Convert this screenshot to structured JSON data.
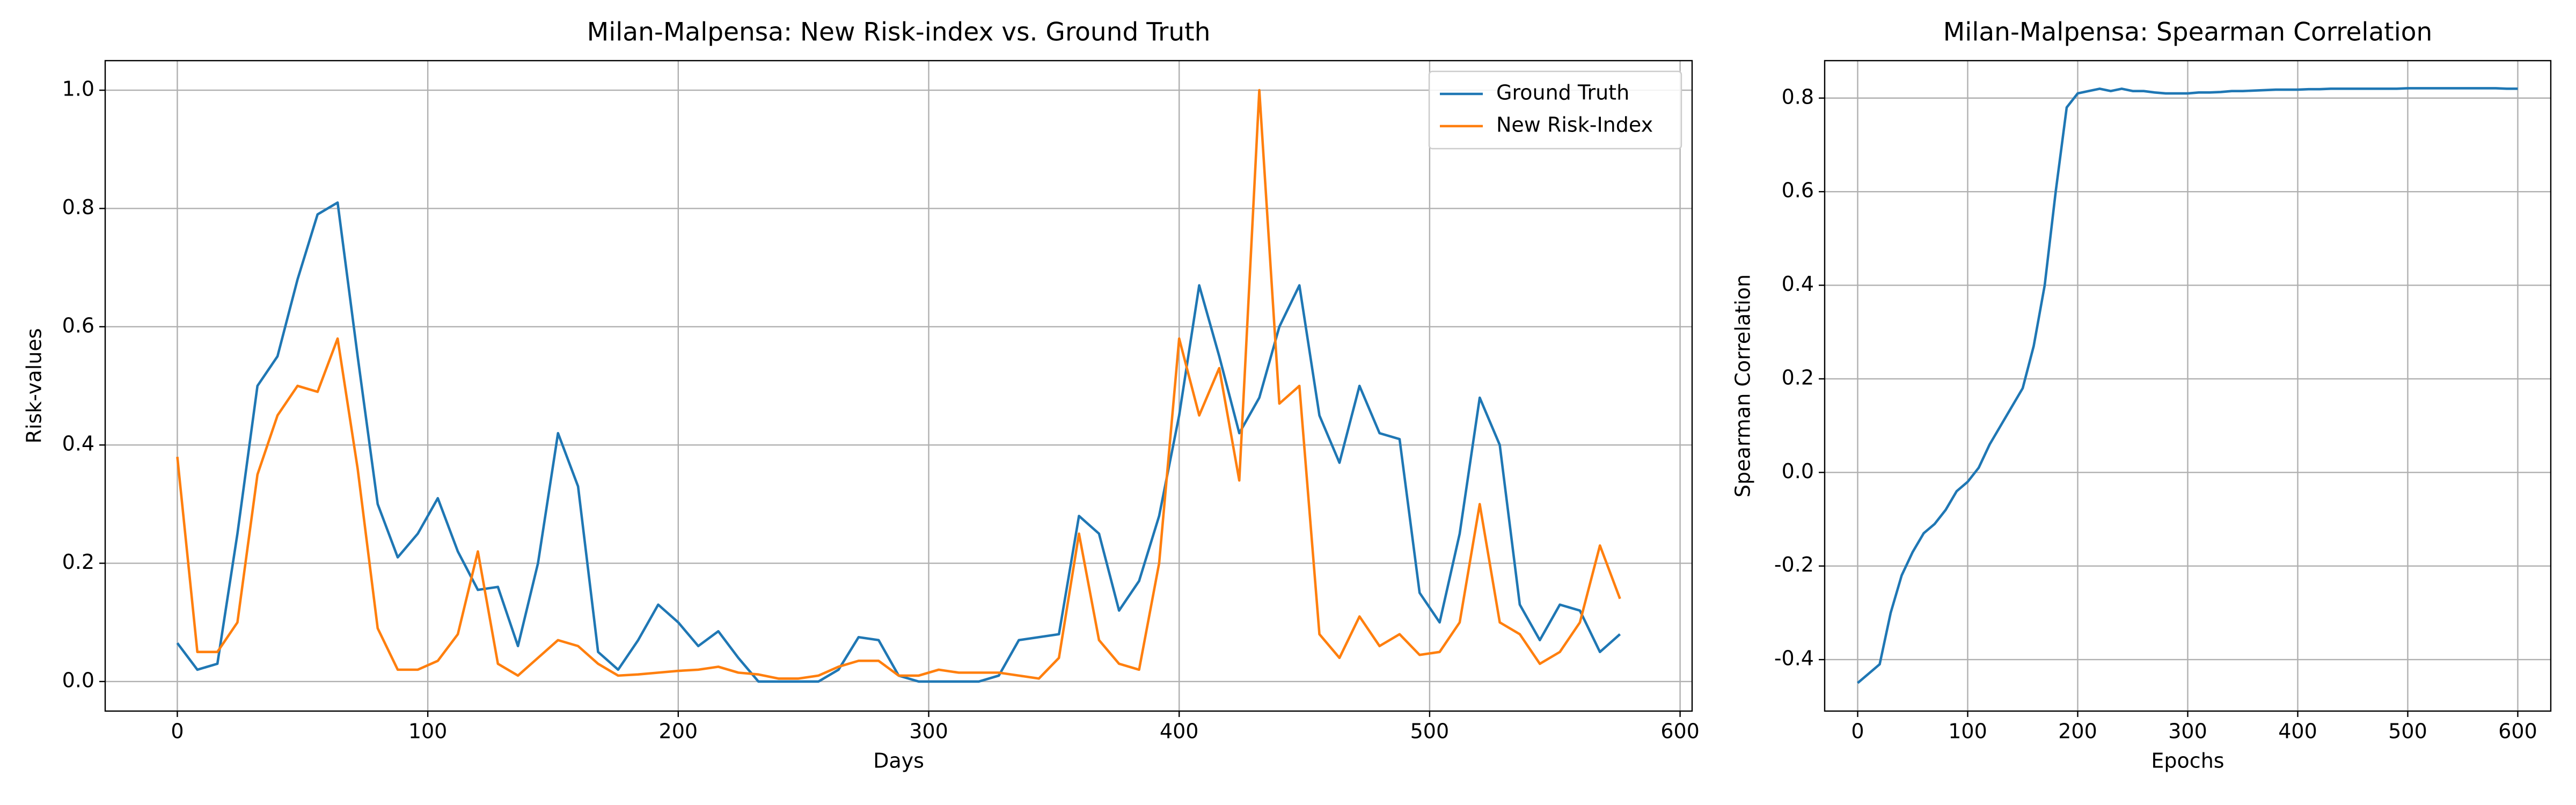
{
  "chart_data": [
    {
      "type": "line",
      "title": "Milan-Malpensa: New Risk-index vs. Ground Truth",
      "xlabel": "Days",
      "ylabel": "Risk-values",
      "x": [
        0,
        8,
        16,
        24,
        32,
        40,
        48,
        56,
        64,
        72,
        80,
        88,
        96,
        104,
        112,
        120,
        128,
        136,
        144,
        152,
        160,
        168,
        176,
        184,
        192,
        200,
        208,
        216,
        224,
        232,
        240,
        248,
        256,
        264,
        272,
        280,
        288,
        296,
        304,
        312,
        320,
        328,
        336,
        344,
        352,
        360,
        368,
        376,
        384,
        392,
        400,
        408,
        416,
        424,
        432,
        440,
        448,
        456,
        464,
        472,
        480,
        488,
        496,
        504,
        512,
        520,
        528,
        536,
        544,
        552,
        560,
        568,
        576
      ],
      "series": [
        {
          "name": "Ground Truth",
          "color": "#1f77b4",
          "values": [
            0.065,
            0.02,
            0.03,
            0.25,
            0.5,
            0.55,
            0.68,
            0.79,
            0.81,
            0.55,
            0.3,
            0.21,
            0.25,
            0.31,
            0.22,
            0.155,
            0.16,
            0.06,
            0.2,
            0.42,
            0.33,
            0.05,
            0.02,
            0.07,
            0.13,
            0.1,
            0.06,
            0.085,
            0.04,
            0,
            0,
            0,
            0,
            0.02,
            0.075,
            0.07,
            0.01,
            0,
            0,
            0,
            0,
            0.01,
            0.07,
            0.075,
            0.08,
            0.28,
            0.25,
            0.12,
            0.17,
            0.28,
            0.45,
            0.67,
            0.55,
            0.42,
            0.48,
            0.6,
            0.67,
            0.45,
            0.37,
            0.5,
            0.42,
            0.41,
            0.15,
            0.1,
            0.25,
            0.48,
            0.4,
            0.13,
            0.07,
            0.13,
            0.12,
            0.05,
            0.08
          ]
        },
        {
          "name": "New Risk-Index",
          "color": "#ff7f0e",
          "values": [
            0.38,
            0.05,
            0.05,
            0.1,
            0.35,
            0.45,
            0.5,
            0.49,
            0.58,
            0.36,
            0.09,
            0.02,
            0.02,
            0.035,
            0.08,
            0.22,
            0.03,
            0.01,
            0.04,
            0.07,
            0.06,
            0.03,
            0.01,
            0.012,
            0.015,
            0.018,
            0.02,
            0.025,
            0.015,
            0.012,
            0.005,
            0.005,
            0.01,
            0.025,
            0.035,
            0.035,
            0.01,
            0.01,
            0.02,
            0.015,
            0.015,
            0.015,
            0.01,
            0.005,
            0.04,
            0.25,
            0.07,
            0.03,
            0.02,
            0.2,
            0.58,
            0.45,
            0.53,
            0.34,
            1.0,
            0.47,
            0.5,
            0.08,
            0.04,
            0.11,
            0.06,
            0.08,
            0.045,
            0.05,
            0.1,
            0.3,
            0.1,
            0.08,
            0.03,
            0.05,
            0.1,
            0.23,
            0.14
          ]
        }
      ],
      "xlim": [
        -28.8,
        604.8
      ],
      "ylim": [
        -0.05,
        1.05
      ],
      "xticks": [
        0,
        100,
        200,
        300,
        400,
        500,
        600
      ],
      "yticks": [
        {
          "value": 0,
          "label": "0.0"
        },
        {
          "value": 0.2,
          "label": "0.2"
        },
        {
          "value": 0.4,
          "label": "0.4"
        },
        {
          "value": 0.6,
          "label": "0.6"
        },
        {
          "value": 0.8,
          "label": "0.8"
        },
        {
          "value": 1.0,
          "label": "1.0"
        }
      ],
      "grid": true,
      "legend": "upper right"
    },
    {
      "type": "line",
      "title": "Milan-Malpensa: Spearman Correlation",
      "xlabel": "Epochs",
      "ylabel": "Spearman Correlation",
      "x": [
        0,
        10,
        20,
        30,
        40,
        50,
        60,
        70,
        80,
        90,
        100,
        110,
        120,
        130,
        140,
        150,
        160,
        170,
        180,
        190,
        200,
        210,
        220,
        230,
        240,
        250,
        260,
        270,
        280,
        290,
        300,
        310,
        320,
        330,
        340,
        350,
        360,
        370,
        380,
        390,
        400,
        410,
        420,
        430,
        440,
        450,
        460,
        470,
        480,
        490,
        500,
        510,
        520,
        530,
        540,
        550,
        560,
        570,
        580,
        590,
        600
      ],
      "series": [
        {
          "color": "#1f77b4",
          "values": [
            -0.45,
            -0.43,
            -0.41,
            -0.3,
            -0.22,
            -0.17,
            -0.13,
            -0.11,
            -0.08,
            -0.04,
            -0.02,
            0.01,
            0.06,
            0.1,
            0.14,
            0.18,
            0.27,
            0.4,
            0.6,
            0.78,
            0.81,
            0.815,
            0.82,
            0.815,
            0.82,
            0.815,
            0.815,
            0.812,
            0.81,
            0.81,
            0.81,
            0.812,
            0.812,
            0.813,
            0.815,
            0.815,
            0.816,
            0.817,
            0.818,
            0.818,
            0.818,
            0.819,
            0.819,
            0.82,
            0.82,
            0.82,
            0.82,
            0.82,
            0.82,
            0.82,
            0.821,
            0.821,
            0.821,
            0.821,
            0.821,
            0.821,
            0.821,
            0.821,
            0.821,
            0.82,
            0.82
          ]
        }
      ],
      "xlim": [
        -30,
        630
      ],
      "ylim": [
        -0.51,
        0.88
      ],
      "xticks": [
        0,
        100,
        200,
        300,
        400,
        500,
        600
      ],
      "yticks": [
        {
          "value": -0.4,
          "label": "-0.4"
        },
        {
          "value": -0.2,
          "label": "-0.2"
        },
        {
          "value": 0,
          "label": "0.0"
        },
        {
          "value": 0.2,
          "label": "0.2"
        },
        {
          "value": 0.4,
          "label": "0.4"
        },
        {
          "value": 0.6,
          "label": "0.6"
        },
        {
          "value": 0.8,
          "label": "0.8"
        }
      ],
      "grid": true
    }
  ]
}
